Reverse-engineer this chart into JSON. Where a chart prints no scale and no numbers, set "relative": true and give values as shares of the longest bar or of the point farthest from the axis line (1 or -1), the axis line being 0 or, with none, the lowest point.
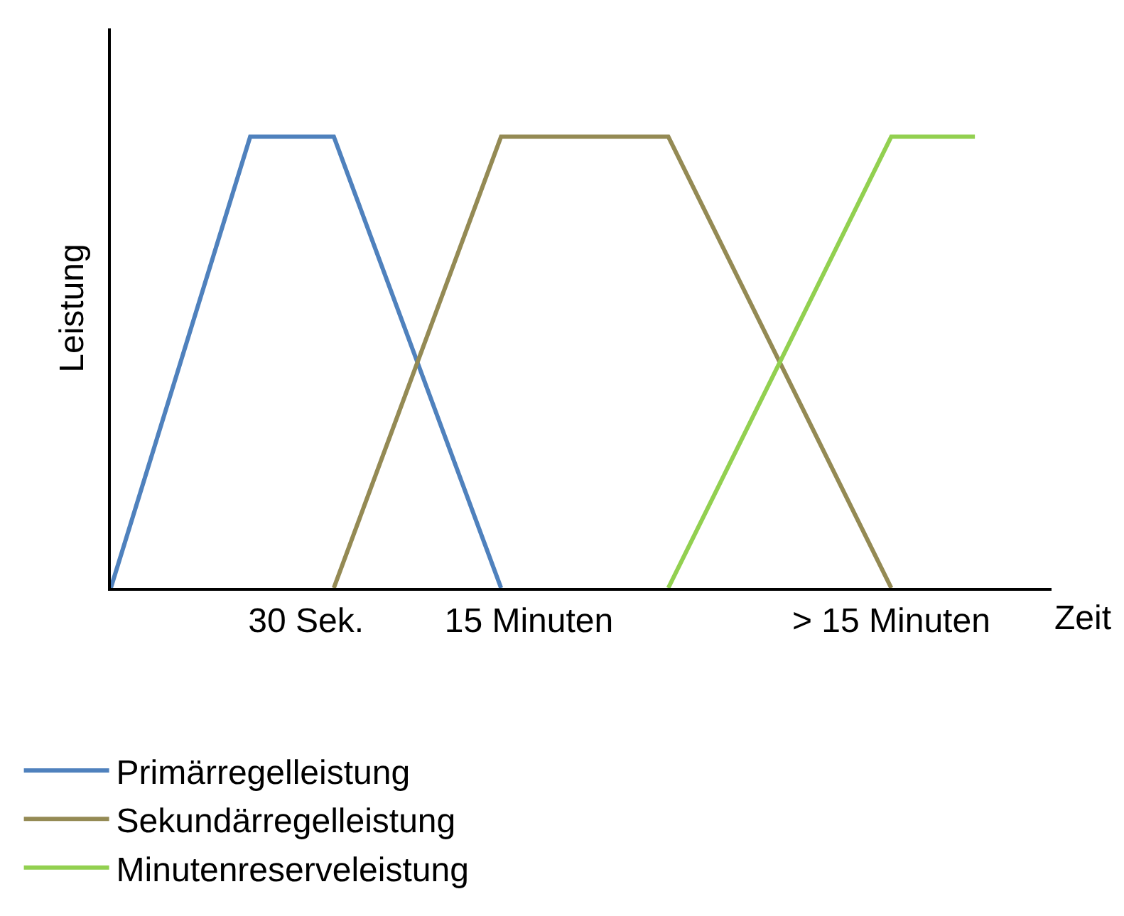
{
  "chart_data": {
    "type": "line",
    "relative": true,
    "xlabel": "Zeit",
    "ylabel": "Leistung",
    "categories": [
      null,
      null,
      null,
      null,
      null,
      null,
      null,
      "30 Sek.",
      null,
      null,
      null,
      null,
      null,
      null,
      null,
      "15 Minuten",
      null,
      null,
      null,
      null,
      null,
      null,
      null,
      null,
      null,
      null,
      null,
      null,
      "> 15 Minuten",
      null,
      null,
      null,
      null,
      null
    ],
    "series": [
      {
        "name": "Primärregelleistung",
        "color": "#4f81bd",
        "values": [
          0,
          null,
          null,
          null,
          null,
          1,
          null,
          null,
          1,
          null,
          null,
          null,
          null,
          null,
          0,
          null,
          null,
          null,
          null,
          null,
          null,
          null,
          null,
          null,
          null,
          null,
          null,
          null,
          null,
          null,
          null,
          null,
          null,
          null
        ]
      },
      {
        "name": "Sekundärregelleistung",
        "color": "#948a54",
        "values": [
          null,
          null,
          null,
          null,
          null,
          null,
          null,
          null,
          0,
          null,
          null,
          null,
          null,
          null,
          1,
          null,
          null,
          null,
          null,
          null,
          1,
          null,
          null,
          null,
          null,
          null,
          null,
          null,
          0,
          null,
          null,
          null,
          null,
          null
        ]
      },
      {
        "name": "Minutenreserveleistung",
        "color": "#92d050",
        "values": [
          null,
          null,
          null,
          null,
          null,
          null,
          null,
          null,
          null,
          null,
          null,
          null,
          null,
          null,
          null,
          null,
          null,
          null,
          null,
          null,
          0,
          null,
          null,
          null,
          null,
          null,
          null,
          null,
          1,
          null,
          null,
          1,
          null,
          null
        ]
      }
    ],
    "legend": "bottom left",
    "marker": "none",
    "line_style": "solid"
  }
}
